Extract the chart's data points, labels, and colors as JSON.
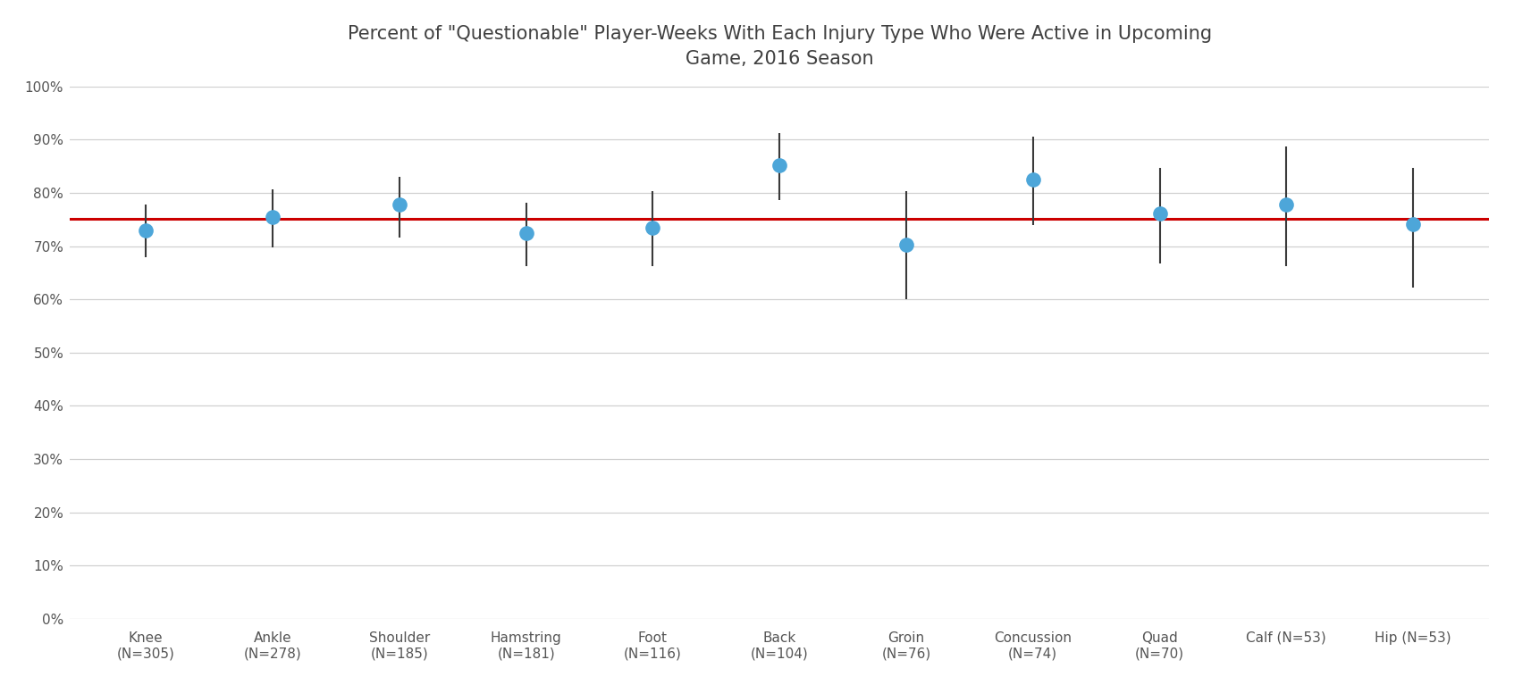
{
  "title": "Percent of \"Questionable\" Player-Weeks With Each Injury Type Who Were Active in Upcoming\nGame, 2016 Season",
  "categories": [
    "Knee\n(N=305)",
    "Ankle\n(N=278)",
    "Shoulder\n(N=185)",
    "Hamstring\n(N=181)",
    "Foot\n(N=116)",
    "Back\n(N=104)",
    "Groin\n(N=76)",
    "Concussion\n(N=74)",
    "Quad\n(N=70)",
    "Calf (N=53)",
    "Hip (N=53)"
  ],
  "values": [
    0.73,
    0.755,
    0.778,
    0.724,
    0.735,
    0.852,
    0.703,
    0.826,
    0.762,
    0.778,
    0.742
  ],
  "err_low": [
    0.05,
    0.057,
    0.062,
    0.062,
    0.072,
    0.065,
    0.103,
    0.086,
    0.095,
    0.115,
    0.12
  ],
  "err_high": [
    0.049,
    0.052,
    0.052,
    0.058,
    0.068,
    0.06,
    0.1,
    0.08,
    0.085,
    0.11,
    0.105
  ],
  "reference_line": 0.752,
  "dot_color": "#4da6d9",
  "line_color": "#cc0000",
  "background_color": "#ffffff",
  "plot_bg_color": "#ffffff",
  "grid_color": "#d0d0d0",
  "title_fontsize": 15,
  "tick_fontsize": 11,
  "ylim": [
    0,
    1.0
  ],
  "yticks": [
    0.0,
    0.1,
    0.2,
    0.3,
    0.4,
    0.5,
    0.6,
    0.7,
    0.8,
    0.9,
    1.0
  ]
}
